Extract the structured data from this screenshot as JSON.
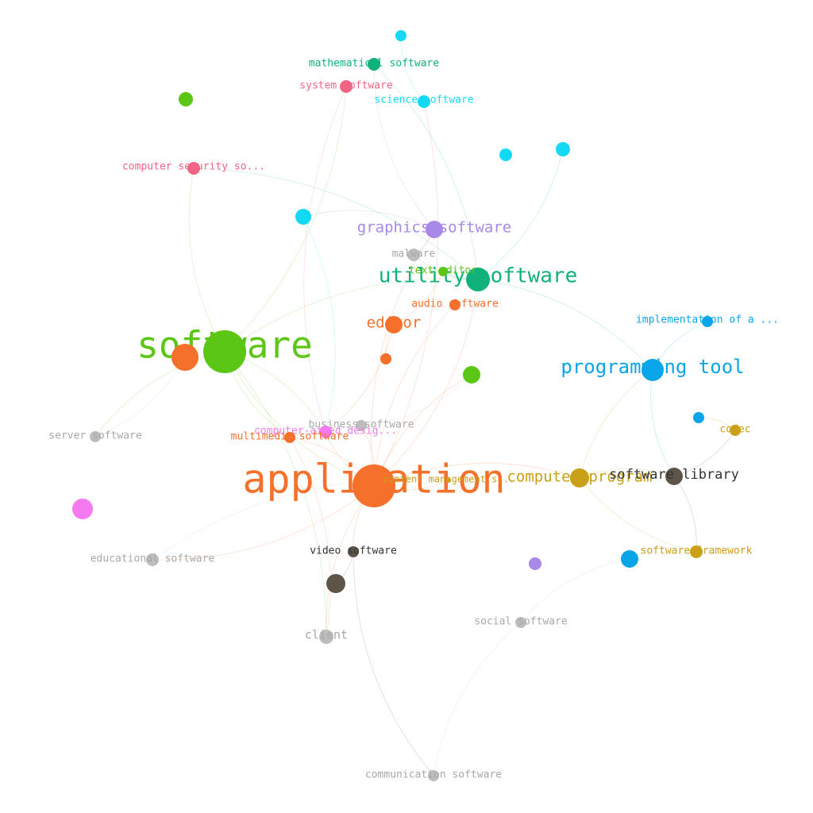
{
  "graph": {
    "nodes": [
      {
        "id": "software",
        "label": "software",
        "group": "lime",
        "size": "huge"
      },
      {
        "id": "application",
        "label": "application",
        "group": "orange",
        "size": "huge"
      },
      {
        "id": "utility_software",
        "label": "utility software",
        "group": "teal",
        "size": "large"
      },
      {
        "id": "programming_tool",
        "label": "programming tool",
        "group": "blue",
        "size": "large"
      },
      {
        "id": "computer_program",
        "label": "computer program",
        "group": "gold",
        "size": "medium"
      },
      {
        "id": "software_library",
        "label": "software library",
        "group": "brown",
        "size": "medium"
      },
      {
        "id": "graphics_software",
        "label": "graphics software",
        "group": "purple",
        "size": "medium"
      },
      {
        "id": "editor",
        "label": "editor",
        "group": "orange",
        "size": "medium"
      },
      {
        "id": "mathematical_software",
        "label": "mathematical software",
        "group": "teal",
        "size": "small"
      },
      {
        "id": "system_software",
        "label": "system software",
        "group": "pink",
        "size": "small"
      },
      {
        "id": "science_software",
        "label": "science software",
        "group": "cyan",
        "size": "small"
      },
      {
        "id": "computer_security",
        "label": "computer security so...",
        "group": "pink",
        "size": "small"
      },
      {
        "id": "malware",
        "label": "malware",
        "group": "grey",
        "size": "small"
      },
      {
        "id": "text_editor",
        "label": "text editor",
        "group": "lime",
        "size": "small"
      },
      {
        "id": "audio_software",
        "label": "audio software",
        "group": "orange",
        "size": "small"
      },
      {
        "id": "implementation",
        "label": "implementation of a ...",
        "group": "blue",
        "size": "small"
      },
      {
        "id": "codec",
        "label": "codec",
        "group": "gold",
        "size": "small"
      },
      {
        "id": "business_software",
        "label": "business software",
        "group": "grey",
        "size": "small"
      },
      {
        "id": "cad",
        "label": "computer-aided desig...",
        "group": "magenta",
        "size": "small"
      },
      {
        "id": "multimedia_software",
        "label": "multimedia software",
        "group": "orange",
        "size": "small"
      },
      {
        "id": "server_software",
        "label": "server software",
        "group": "grey",
        "size": "small"
      },
      {
        "id": "content_management",
        "label": "content management s...",
        "group": "gold",
        "size": "tiny"
      },
      {
        "id": "educational_software",
        "label": "educational software",
        "group": "grey",
        "size": "small"
      },
      {
        "id": "video_software",
        "label": "video software",
        "group": "brown",
        "size": "small"
      },
      {
        "id": "software_framework",
        "label": "software framework",
        "group": "gold",
        "size": "small"
      },
      {
        "id": "client",
        "label": "client",
        "group": "grey",
        "size": "small"
      },
      {
        "id": "social_software",
        "label": "social software",
        "group": "grey",
        "size": "small"
      },
      {
        "id": "communication_software",
        "label": "communication software",
        "group": "grey",
        "size": "small"
      },
      {
        "id": "u_cyan_top",
        "label": "",
        "group": "cyan",
        "size": "small"
      },
      {
        "id": "u_lime_topleft",
        "label": "",
        "group": "lime",
        "size": "small"
      },
      {
        "id": "u_cyan_a",
        "label": "",
        "group": "cyan",
        "size": "small"
      },
      {
        "id": "u_cyan_b",
        "label": "",
        "group": "cyan",
        "size": "small"
      },
      {
        "id": "u_cyan_c",
        "label": "",
        "group": "cyan",
        "size": "small"
      },
      {
        "id": "u_orange_software",
        "label": "",
        "group": "orange",
        "size": "large"
      },
      {
        "id": "u_orange_small",
        "label": "",
        "group": "orange",
        "size": "small"
      },
      {
        "id": "u_lime_mid",
        "label": "",
        "group": "lime",
        "size": "small"
      },
      {
        "id": "u_blue_small",
        "label": "",
        "group": "blue",
        "size": "small"
      },
      {
        "id": "u_magenta",
        "label": "",
        "group": "magenta",
        "size": "medium"
      },
      {
        "id": "u_brown",
        "label": "",
        "group": "brown",
        "size": "medium"
      },
      {
        "id": "u_purple",
        "label": "",
        "group": "purple",
        "size": "small"
      },
      {
        "id": "u_blue_bottom",
        "label": "",
        "group": "blue",
        "size": "small"
      }
    ],
    "edges": [
      [
        "software",
        "application"
      ],
      [
        "software",
        "utility_software"
      ],
      [
        "software",
        "system_software"
      ],
      [
        "software",
        "computer_security"
      ],
      [
        "software",
        "server_software"
      ],
      [
        "software",
        "client"
      ],
      [
        "software",
        "multimedia_software"
      ],
      [
        "software",
        "cad"
      ],
      [
        "application",
        "utility_software"
      ],
      [
        "application",
        "computer_program"
      ],
      [
        "application",
        "business_software"
      ],
      [
        "application",
        "educational_software"
      ],
      [
        "application",
        "video_software"
      ],
      [
        "application",
        "audio_software"
      ],
      [
        "application",
        "content_management"
      ],
      [
        "application",
        "graphics_software"
      ],
      [
        "application",
        "science_software"
      ],
      [
        "application",
        "u_lime_mid"
      ],
      [
        "application",
        "multimedia_software"
      ],
      [
        "application",
        "cad"
      ],
      [
        "application",
        "client"
      ],
      [
        "utility_software",
        "programming_tool"
      ],
      [
        "utility_software",
        "u_cyan_b"
      ],
      [
        "utility_software",
        "malware"
      ],
      [
        "utility_software",
        "mathematical_software"
      ],
      [
        "utility_software",
        "text_editor"
      ],
      [
        "utility_software",
        "computer_security"
      ],
      [
        "programming_tool",
        "implementation"
      ],
      [
        "programming_tool",
        "software_library"
      ],
      [
        "computer_program",
        "software_library"
      ],
      [
        "computer_program",
        "software_framework"
      ],
      [
        "computer_program",
        "programming_tool"
      ],
      [
        "software_library",
        "codec"
      ],
      [
        "software_library",
        "software_framework"
      ],
      [
        "editor",
        "u_orange_small"
      ],
      [
        "editor",
        "cad"
      ],
      [
        "editor",
        "text_editor"
      ],
      [
        "graphics_software",
        "malware"
      ],
      [
        "graphics_software",
        "u_cyan_c"
      ],
      [
        "graphics_software",
        "mathematical_software"
      ],
      [
        "video_software",
        "communication_software"
      ],
      [
        "video_software",
        "u_brown"
      ],
      [
        "social_software",
        "communication_software"
      ],
      [
        "social_software",
        "u_blue_bottom"
      ],
      [
        "system_software",
        "cad"
      ],
      [
        "science_software",
        "u_cyan_top"
      ],
      [
        "business_software",
        "u_lime_mid"
      ],
      [
        "u_cyan_c",
        "cad"
      ],
      [
        "server_software",
        "u_orange_software"
      ],
      [
        "educational_software",
        "content_management"
      ],
      [
        "codec",
        "u_blue_small"
      ],
      [
        "multimedia_software",
        "client"
      ]
    ]
  },
  "colors": {
    "lime": "#5bc714",
    "orange": "#f5702a",
    "teal": "#10b27a",
    "blue": "#0aa5e8",
    "gold": "#c9a016",
    "brown": "#5d5549",
    "purple": "#a989e8",
    "pink": "#f06585",
    "cyan": "#14d9f5",
    "grey": "#bdbdbd",
    "magenta": "#f57af0"
  }
}
